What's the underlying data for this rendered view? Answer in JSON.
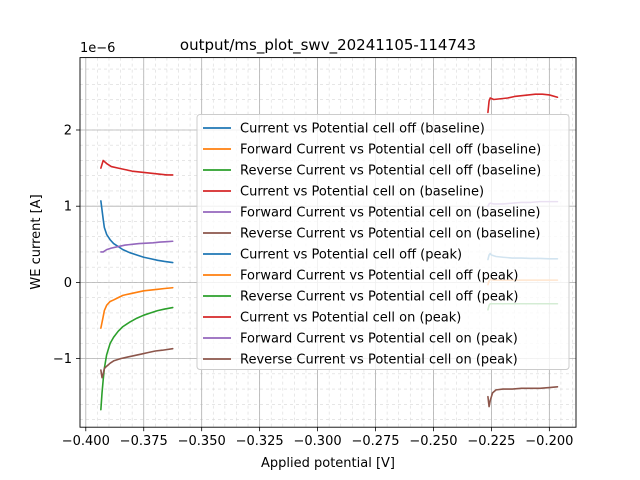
{
  "chart_data": {
    "type": "line",
    "title": "output/ms_plot_swv_20241105-114743",
    "xlabel": "Applied potential [V]",
    "ylabel": "WE current [A]",
    "y_offset_label": "1e−6",
    "xlim": [
      -0.4025,
      -0.1885
    ],
    "ylim": [
      -1.9,
      2.95
    ],
    "x_ticks": [
      -0.4,
      -0.375,
      -0.35,
      -0.325,
      -0.3,
      -0.275,
      -0.25,
      -0.225,
      -0.2
    ],
    "x_tick_labels": [
      "−0.400",
      "−0.375",
      "−0.350",
      "−0.325",
      "−0.300",
      "−0.275",
      "−0.250",
      "−0.225",
      "−0.200"
    ],
    "y_ticks": [
      -1,
      0,
      1,
      2
    ],
    "y_tick_labels": [
      "−1",
      "0",
      "1",
      "2"
    ],
    "grid": true,
    "legend_position": "center-right",
    "series": [
      {
        "name": "Current vs Potential cell off (baseline)",
        "color": "#1f77b4",
        "x": [
          -0.3935,
          -0.3925,
          -0.392,
          -0.391,
          -0.3895,
          -0.388,
          -0.386,
          -0.384,
          -0.381,
          -0.378,
          -0.375,
          -0.372,
          -0.369,
          -0.366,
          -0.3625
        ],
        "y": [
          1.07,
          0.83,
          0.72,
          0.63,
          0.56,
          0.51,
          0.47,
          0.43,
          0.39,
          0.36,
          0.33,
          0.31,
          0.29,
          0.275,
          0.26
        ]
      },
      {
        "name": "Forward Current vs Potential cell off (baseline)",
        "color": "#ff7f0e",
        "x": [
          -0.3935,
          -0.3925,
          -0.392,
          -0.391,
          -0.3895,
          -0.388,
          -0.386,
          -0.384,
          -0.381,
          -0.378,
          -0.375,
          -0.372,
          -0.369,
          -0.366,
          -0.3625
        ],
        "y": [
          -0.6,
          -0.45,
          -0.37,
          -0.3,
          -0.25,
          -0.23,
          -0.2,
          -0.17,
          -0.15,
          -0.13,
          -0.11,
          -0.1,
          -0.09,
          -0.08,
          -0.07
        ]
      },
      {
        "name": "Reverse Current vs Potential cell off (baseline)",
        "color": "#2ca02c",
        "x": [
          -0.3935,
          -0.393,
          -0.3925,
          -0.392,
          -0.391,
          -0.3895,
          -0.388,
          -0.386,
          -0.384,
          -0.381,
          -0.378,
          -0.375,
          -0.372,
          -0.369,
          -0.366,
          -0.3625
        ],
        "y": [
          -1.67,
          -1.45,
          -1.28,
          -1.13,
          -0.95,
          -0.8,
          -0.72,
          -0.64,
          -0.58,
          -0.52,
          -0.47,
          -0.43,
          -0.4,
          -0.37,
          -0.35,
          -0.33
        ]
      },
      {
        "name": "Current vs Potential cell on (baseline)",
        "color": "#d62728",
        "x": [
          -0.3935,
          -0.3925,
          -0.391,
          -0.389,
          -0.386,
          -0.383,
          -0.38,
          -0.377,
          -0.374,
          -0.371,
          -0.368,
          -0.365,
          -0.3625
        ],
        "y": [
          1.5,
          1.6,
          1.56,
          1.52,
          1.5,
          1.48,
          1.46,
          1.45,
          1.44,
          1.43,
          1.42,
          1.41,
          1.41
        ]
      },
      {
        "name": "Forward Current vs Potential cell on (baseline)",
        "color": "#9467bd",
        "x": [
          -0.3935,
          -0.3925,
          -0.391,
          -0.389,
          -0.386,
          -0.383,
          -0.38,
          -0.377,
          -0.374,
          -0.371,
          -0.368,
          -0.365,
          -0.3625
        ],
        "y": [
          0.4,
          0.4,
          0.43,
          0.45,
          0.47,
          0.49,
          0.5,
          0.51,
          0.515,
          0.52,
          0.53,
          0.535,
          0.54
        ]
      },
      {
        "name": "Reverse Current vs Potential cell on (baseline)",
        "color": "#8c564b",
        "x": [
          -0.3935,
          -0.393,
          -0.3925,
          -0.392,
          -0.391,
          -0.3895,
          -0.388,
          -0.385,
          -0.382,
          -0.379,
          -0.376,
          -0.373,
          -0.37,
          -0.367,
          -0.3625
        ],
        "y": [
          -1.15,
          -1.25,
          -1.2,
          -1.13,
          -1.1,
          -1.06,
          -1.03,
          -1.0,
          -0.98,
          -0.96,
          -0.94,
          -0.92,
          -0.9,
          -0.89,
          -0.87
        ]
      },
      {
        "name": "Current vs Potential cell off (peak)",
        "color": "#1f77b4",
        "x": [
          -0.2265,
          -0.226,
          -0.2255,
          -0.225,
          -0.223,
          -0.22,
          -0.216,
          -0.212,
          -0.208,
          -0.204,
          -0.2,
          -0.1965
        ],
        "y": [
          0.3,
          0.36,
          0.38,
          0.36,
          0.34,
          0.33,
          0.32,
          0.32,
          0.315,
          0.315,
          0.31,
          0.31
        ]
      },
      {
        "name": "Forward Current vs Potential cell off (peak)",
        "color": "#ff7f0e",
        "x": [
          -0.2265,
          -0.226,
          -0.2255,
          -0.224,
          -0.22,
          -0.216,
          -0.212,
          -0.208,
          -0.204,
          -0.2,
          -0.1965
        ],
        "y": [
          -0.03,
          0.02,
          0.04,
          0.03,
          0.03,
          0.03,
          0.03,
          0.03,
          0.03,
          0.03,
          0.03
        ]
      },
      {
        "name": "Reverse Current vs Potential cell off (peak)",
        "color": "#2ca02c",
        "x": [
          -0.2265,
          -0.226,
          -0.2255,
          -0.224,
          -0.22,
          -0.216,
          -0.212,
          -0.208,
          -0.204,
          -0.2,
          -0.1965
        ],
        "y": [
          -0.36,
          -0.3,
          -0.28,
          -0.28,
          -0.28,
          -0.28,
          -0.28,
          -0.28,
          -0.28,
          -0.28,
          -0.28
        ]
      },
      {
        "name": "Current vs Potential cell on (peak)",
        "color": "#d62728",
        "x": [
          -0.2265,
          -0.226,
          -0.2255,
          -0.224,
          -0.221,
          -0.218,
          -0.215,
          -0.212,
          -0.209,
          -0.206,
          -0.203,
          -0.2,
          -0.1965
        ],
        "y": [
          2.23,
          2.38,
          2.42,
          2.4,
          2.41,
          2.42,
          2.44,
          2.45,
          2.46,
          2.47,
          2.47,
          2.46,
          2.43
        ]
      },
      {
        "name": "Forward Current vs Potential cell on (peak)",
        "color": "#9467bd",
        "x": [
          -0.2265,
          -0.226,
          -0.2255,
          -0.224,
          -0.22,
          -0.216,
          -0.212,
          -0.208,
          -0.204,
          -0.2,
          -0.1965
        ],
        "y": [
          1.0,
          1.03,
          1.04,
          1.03,
          1.03,
          1.04,
          1.05,
          1.05,
          1.06,
          1.06,
          1.06
        ]
      },
      {
        "name": "Reverse Current vs Potential cell on (peak)",
        "color": "#8c564b",
        "x": [
          -0.2265,
          -0.226,
          -0.2255,
          -0.2245,
          -0.223,
          -0.22,
          -0.216,
          -0.212,
          -0.208,
          -0.204,
          -0.2,
          -0.1965
        ],
        "y": [
          -1.5,
          -1.63,
          -1.55,
          -1.45,
          -1.41,
          -1.4,
          -1.4,
          -1.39,
          -1.39,
          -1.39,
          -1.38,
          -1.37
        ]
      }
    ]
  }
}
